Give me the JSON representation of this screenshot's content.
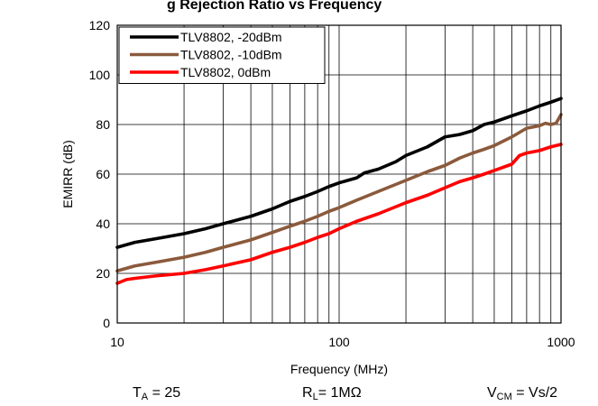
{
  "chart_data": {
    "type": "line",
    "title": "g Rejection Ratio vs Frequency",
    "xlabel": "Frequency (MHz)",
    "ylabel": "EMIRR (dB)",
    "x_scale": "log",
    "xlim": [
      10,
      1000
    ],
    "ylim": [
      0,
      120
    ],
    "x_ticks": [
      "10",
      "100",
      "1000"
    ],
    "y_ticks": [
      "0",
      "20",
      "40",
      "60",
      "80",
      "100",
      "120"
    ],
    "grid": true,
    "legend_position": "top-left",
    "series": [
      {
        "name": "TLV8802, -20dBm",
        "color": "#000000",
        "x": [
          10,
          12,
          15,
          20,
          25,
          30,
          40,
          50,
          60,
          70,
          80,
          90,
          100,
          120,
          130,
          150,
          180,
          200,
          250,
          300,
          350,
          400,
          450,
          500,
          600,
          700,
          800,
          900,
          1000
        ],
        "y": [
          30.5,
          32.5,
          34,
          36,
          38,
          40,
          43,
          46,
          49,
          51,
          53,
          55,
          56.5,
          58.5,
          60.5,
          62,
          65,
          67.5,
          71,
          75,
          76,
          77.5,
          80,
          81,
          83.5,
          85.5,
          87.5,
          89,
          90.5
        ]
      },
      {
        "name": "TLV8802, -10dBm",
        "color": "#8B5A3C",
        "x": [
          10,
          12,
          15,
          20,
          25,
          30,
          40,
          50,
          60,
          70,
          80,
          90,
          100,
          120,
          150,
          200,
          250,
          300,
          350,
          400,
          450,
          500,
          600,
          700,
          750,
          800,
          850,
          900,
          950,
          1000
        ],
        "y": [
          21,
          23,
          24.5,
          26.5,
          28.5,
          30.5,
          33.5,
          36.5,
          39,
          41,
          43,
          45,
          46.5,
          49.5,
          53,
          57.5,
          61,
          63.5,
          66.5,
          68.5,
          70,
          71.5,
          75,
          78.5,
          79,
          79.5,
          80.5,
          80,
          80.5,
          84
        ]
      },
      {
        "name": "TLV8802, 0dBm",
        "color": "#FF0000",
        "x": [
          10,
          11,
          12,
          15,
          20,
          25,
          30,
          40,
          50,
          60,
          70,
          80,
          90,
          100,
          120,
          150,
          200,
          250,
          300,
          350,
          400,
          450,
          500,
          600,
          650,
          700,
          800,
          900,
          1000
        ],
        "y": [
          16,
          17.5,
          18,
          19,
          20,
          21.5,
          23,
          25.5,
          28.5,
          30.5,
          32.5,
          34.5,
          36,
          38,
          41,
          44,
          48.5,
          51.5,
          54.5,
          57,
          58.5,
          60,
          61.5,
          64,
          67.5,
          68.5,
          69.5,
          71,
          72
        ]
      }
    ],
    "conditions": [
      {
        "main": "T",
        "sub": "A",
        "rest": " = 25"
      },
      {
        "main": "R",
        "sub": "L",
        "rest": "= 1MΩ"
      },
      {
        "main": "V",
        "sub": "CM",
        "rest": " = Vs/2"
      }
    ]
  }
}
